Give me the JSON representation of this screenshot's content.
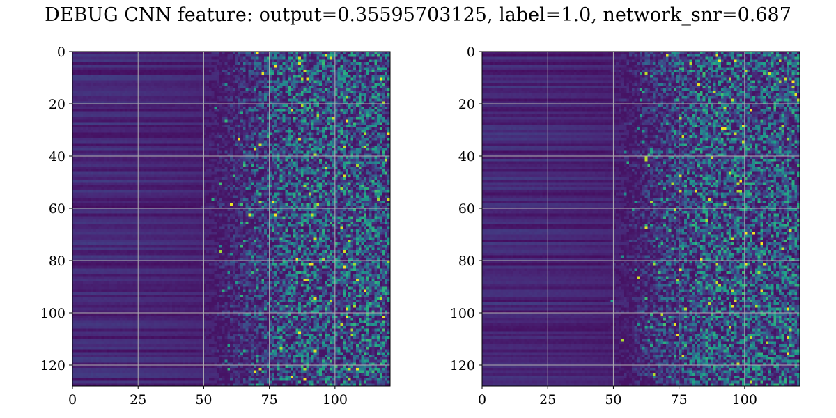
{
  "figure": {
    "title": "DEBUG CNN feature: output=0.35595703125, label=1.0, network_snr=0.687"
  },
  "colormap": {
    "name": "viridis",
    "stops": [
      "#440154",
      "#482878",
      "#3e4989",
      "#31688e",
      "#26828e",
      "#1f9e89",
      "#35b779",
      "#6ece58",
      "#b5de2b",
      "#fde725"
    ]
  },
  "chart_data": [
    {
      "type": "heatmap",
      "title": "",
      "xlabel": "",
      "ylabel": "",
      "xlim": [
        0,
        121
      ],
      "ylim": [
        128,
        0
      ],
      "rows": 128,
      "cols": 121,
      "grid": true,
      "xticks": [
        0,
        25,
        50,
        75,
        100
      ],
      "yticks": [
        0,
        20,
        40,
        60,
        80,
        100,
        120
      ],
      "description_of_values": "low near-constant values in columns 0-50 with faint horizontal banding; increasingly noisy speckle toward columns 60-121",
      "seed": 7
    },
    {
      "type": "heatmap",
      "title": "",
      "xlabel": "",
      "ylabel": "",
      "xlim": [
        0,
        121
      ],
      "ylim": [
        128,
        0
      ],
      "rows": 128,
      "cols": 121,
      "grid": true,
      "xticks": [
        0,
        25,
        50,
        75,
        100
      ],
      "yticks": [
        0,
        20,
        40,
        60,
        80,
        100,
        120
      ],
      "description_of_values": "low near-constant values in columns 0-50 with faint horizontal banding; noisy speckle with bright points toward columns 65-121",
      "seed": 19
    }
  ]
}
